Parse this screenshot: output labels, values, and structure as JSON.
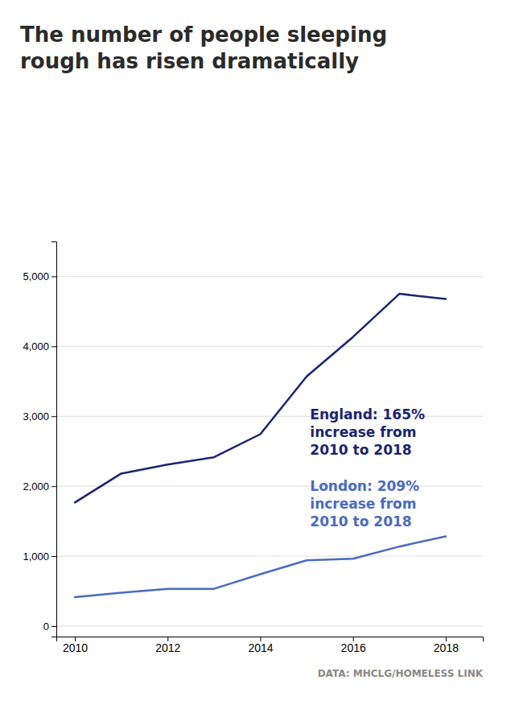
{
  "chart_data": {
    "type": "line",
    "title": "The number of people sleeping\nrough has risen dramatically",
    "x": [
      2010,
      2011,
      2012,
      2013,
      2014,
      2015,
      2016,
      2017,
      2018
    ],
    "series": [
      {
        "color": "#1a2570",
        "values": [
          1768,
          2181,
          2309,
          2414,
          2744,
          3569,
          4134,
          4751,
          4677
        ]
      },
      {
        "color": "#4a6bbf",
        "values": [
          415,
          476,
          532,
          533,
          742,
          940,
          964,
          1137,
          1283
        ]
      }
    ],
    "xlim": [
      2009.6,
      2018.8
    ],
    "xticks": [
      2010,
      2012,
      2014,
      2016,
      2018
    ],
    "ylim": [
      -150,
      5500
    ],
    "yticks": [
      0,
      {
        "value": 1000,
        "label": "1,000"
      },
      {
        "value": 2000,
        "label": "2,000"
      },
      {
        "value": 3000,
        "label": "3,000"
      },
      {
        "value": 4000,
        "label": "4,000"
      },
      {
        "value": 5000,
        "label": "5,000"
      }
    ],
    "grid": true,
    "annotations": [
      "England: 165%\nincrease from\n2010 to 2018",
      "London: 209%\nincrease from\n2010 to 2018",
      "DATA: MHCLG/HOMELESS LINK"
    ]
  }
}
